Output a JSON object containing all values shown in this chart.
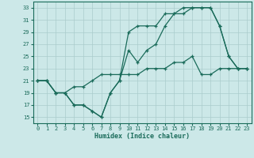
{
  "background_color": "#cce8e8",
  "grid_color": "#aacccc",
  "line_color": "#1a6b5a",
  "xlabel": "Humidex (Indice chaleur)",
  "xlim": [
    -0.5,
    23.5
  ],
  "ylim": [
    14,
    34
  ],
  "yticks": [
    15,
    17,
    19,
    21,
    23,
    25,
    27,
    29,
    31,
    33
  ],
  "xticks": [
    0,
    1,
    2,
    3,
    4,
    5,
    6,
    7,
    8,
    9,
    10,
    11,
    12,
    13,
    14,
    15,
    16,
    17,
    18,
    19,
    20,
    21,
    22,
    23
  ],
  "line1_x": [
    0,
    1,
    2,
    3,
    4,
    5,
    6,
    7,
    8,
    9,
    10,
    11,
    12,
    13,
    14,
    15,
    16,
    17,
    18,
    19,
    20,
    21,
    22,
    23
  ],
  "line1_y": [
    21,
    21,
    19,
    19,
    17,
    17,
    16,
    15,
    19,
    21,
    29,
    30,
    30,
    30,
    32,
    32,
    33,
    33,
    33,
    33,
    30,
    25,
    23,
    23
  ],
  "line2_x": [
    0,
    1,
    2,
    3,
    4,
    5,
    6,
    7,
    8,
    9,
    10,
    11,
    12,
    13,
    14,
    15,
    16,
    17,
    18,
    19,
    20,
    21,
    22,
    23
  ],
  "line2_y": [
    21,
    21,
    19,
    19,
    17,
    17,
    16,
    15,
    19,
    21,
    26,
    24,
    26,
    27,
    30,
    32,
    32,
    33,
    33,
    33,
    30,
    25,
    23,
    23
  ],
  "line3_x": [
    0,
    1,
    2,
    3,
    4,
    5,
    6,
    7,
    8,
    9,
    10,
    11,
    12,
    13,
    14,
    15,
    16,
    17,
    18,
    19,
    20,
    21,
    22,
    23
  ],
  "line3_y": [
    21,
    21,
    19,
    19,
    20,
    20,
    21,
    22,
    22,
    22,
    22,
    22,
    23,
    23,
    23,
    24,
    24,
    25,
    22,
    22,
    23,
    23,
    23,
    23
  ]
}
